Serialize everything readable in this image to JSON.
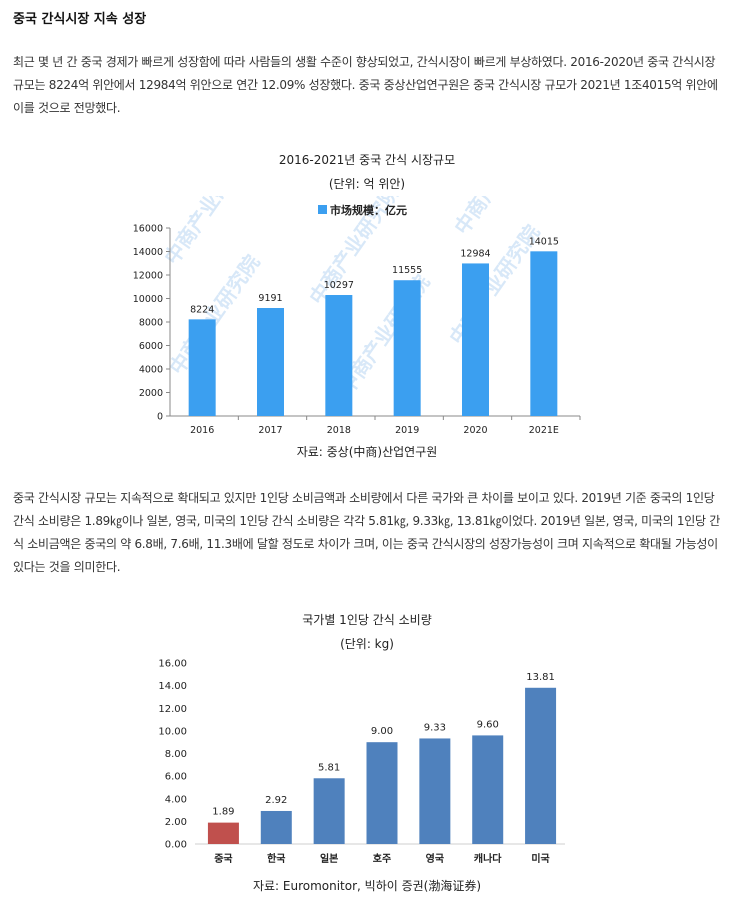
{
  "heading": "중국 간식시장 지속 성장",
  "paragraph1": "최근 몇 년 간 중국 경제가 빠르게 성장함에 따라 사람들의 생활 수준이 향상되었고, 간식시장이 빠르게 부상하였다. 2016-2020년 중국 간식시장 규모는 8224억 위안에서 12984억 위안으로 연간 12.09% 성장했다. 중국 중상산업연구원은 중국 간식시장 규모가 2021년 1조4015억 위안에 이를 것으로 전망했다.",
  "paragraph2": "중국 간식시장 규모는 지속적으로 확대되고 있지만 1인당 소비금액과 소비량에서 다른 국가와 큰 차이를 보이고 있다. 2019년 기준 중국의 1인당 간식 소비량은 1.89㎏이나 일본, 영국, 미국의 1인당 간식 소비량은 각각 5.81㎏, 9.33㎏, 13.81㎏이었다. 2019년 일본, 영국, 미국의 1인당 간식 소비금액은 중국의 약 6.8배, 7.6배, 11.3배에 달할 정도로 차이가 크며, 이는 중국 간식시장의 성장가능성이 크며 지속적으로 확대될 가능성이 있다는 것을 의미한다.",
  "chart_data": [
    {
      "type": "bar",
      "title": "2016-2021년 중국 간식 시장규모",
      "subtitle": "(단위: 억 위안)",
      "legend": "市场规模：亿元",
      "legend_position": "top-center",
      "watermark": "中商产业研究院",
      "categories": [
        "2016",
        "2017",
        "2018",
        "2019",
        "2020",
        "2021E"
      ],
      "values": [
        8224,
        9191,
        10297,
        11555,
        12984,
        14015
      ],
      "value_labels": [
        "8224",
        "9191",
        "10297",
        "11555",
        "12984",
        "14015"
      ],
      "yticks": [
        "0",
        "2000",
        "4000",
        "6000",
        "8000",
        "10000",
        "12000",
        "14000",
        "16000"
      ],
      "ylim": [
        0,
        16000
      ],
      "bar_color": "#3b9ff0",
      "grid": false,
      "source": "자료: 중상(中商)산업연구원"
    },
    {
      "type": "bar",
      "title": "국가별 1인당 간식 소비량",
      "subtitle": "(단위: kg)",
      "categories": [
        "중국",
        "한국",
        "일본",
        "호주",
        "영국",
        "캐나다",
        "미국"
      ],
      "values": [
        1.89,
        2.92,
        5.81,
        9.0,
        9.33,
        9.6,
        13.81
      ],
      "value_labels": [
        "1.89",
        "2.92",
        "5.81",
        "9.00",
        "9.33",
        "9.60",
        "13.81"
      ],
      "yticks": [
        "0.00",
        "2.00",
        "4.00",
        "6.00",
        "8.00",
        "10.00",
        "12.00",
        "14.00",
        "16.00"
      ],
      "ylim": [
        0,
        16
      ],
      "bar_colors": [
        "#c0504d",
        "#4f81bd",
        "#4f81bd",
        "#4f81bd",
        "#4f81bd",
        "#4f81bd",
        "#4f81bd"
      ],
      "grid": false,
      "source": "자료: Euromonitor, 빅하이 증권(渤海证券)"
    }
  ]
}
